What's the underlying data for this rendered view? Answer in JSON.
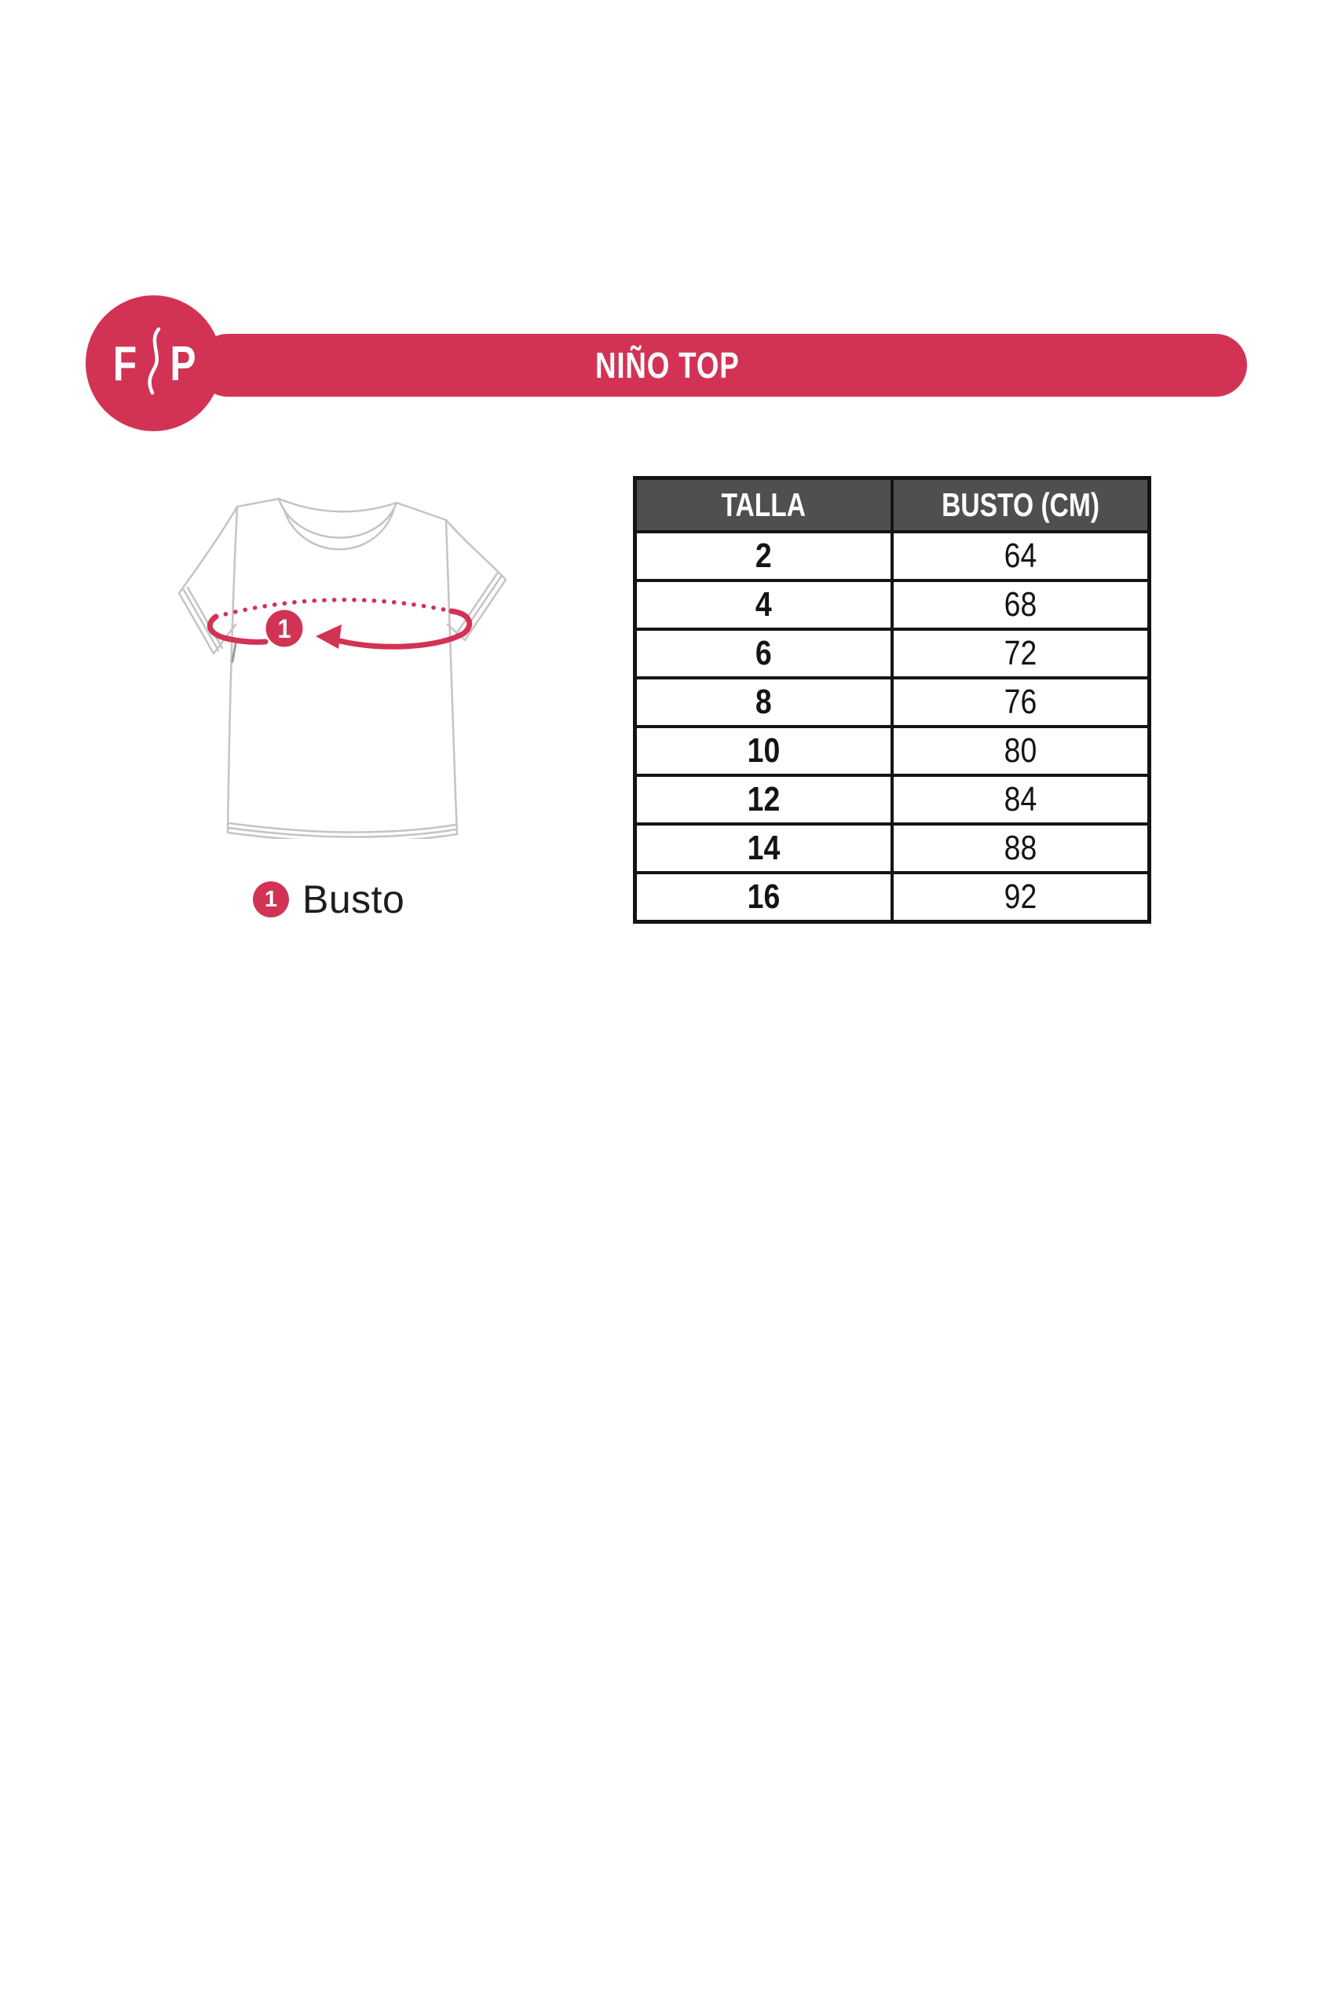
{
  "header": {
    "title": "NIÑO TOP"
  },
  "brand": {
    "letter_left": "F",
    "letter_right": "P"
  },
  "diagram": {
    "marker": "1",
    "legend_marker": "1",
    "legend_label": "Busto"
  },
  "chart_data": {
    "type": "table",
    "title": "NIÑO TOP",
    "columns": [
      "TALLA",
      "BUSTO (CM)"
    ],
    "rows": [
      [
        "2",
        "64"
      ],
      [
        "4",
        "68"
      ],
      [
        "6",
        "72"
      ],
      [
        "8",
        "76"
      ],
      [
        "10",
        "80"
      ],
      [
        "12",
        "84"
      ],
      [
        "14",
        "88"
      ],
      [
        "16",
        "92"
      ]
    ]
  },
  "colors": {
    "accent": "#d23355",
    "header_bg": "#4f4f4f",
    "border": "#141414",
    "shirt_line": "#c4c4c4",
    "text_dark": "#1d1d1b",
    "text_white": "#ffffff"
  }
}
